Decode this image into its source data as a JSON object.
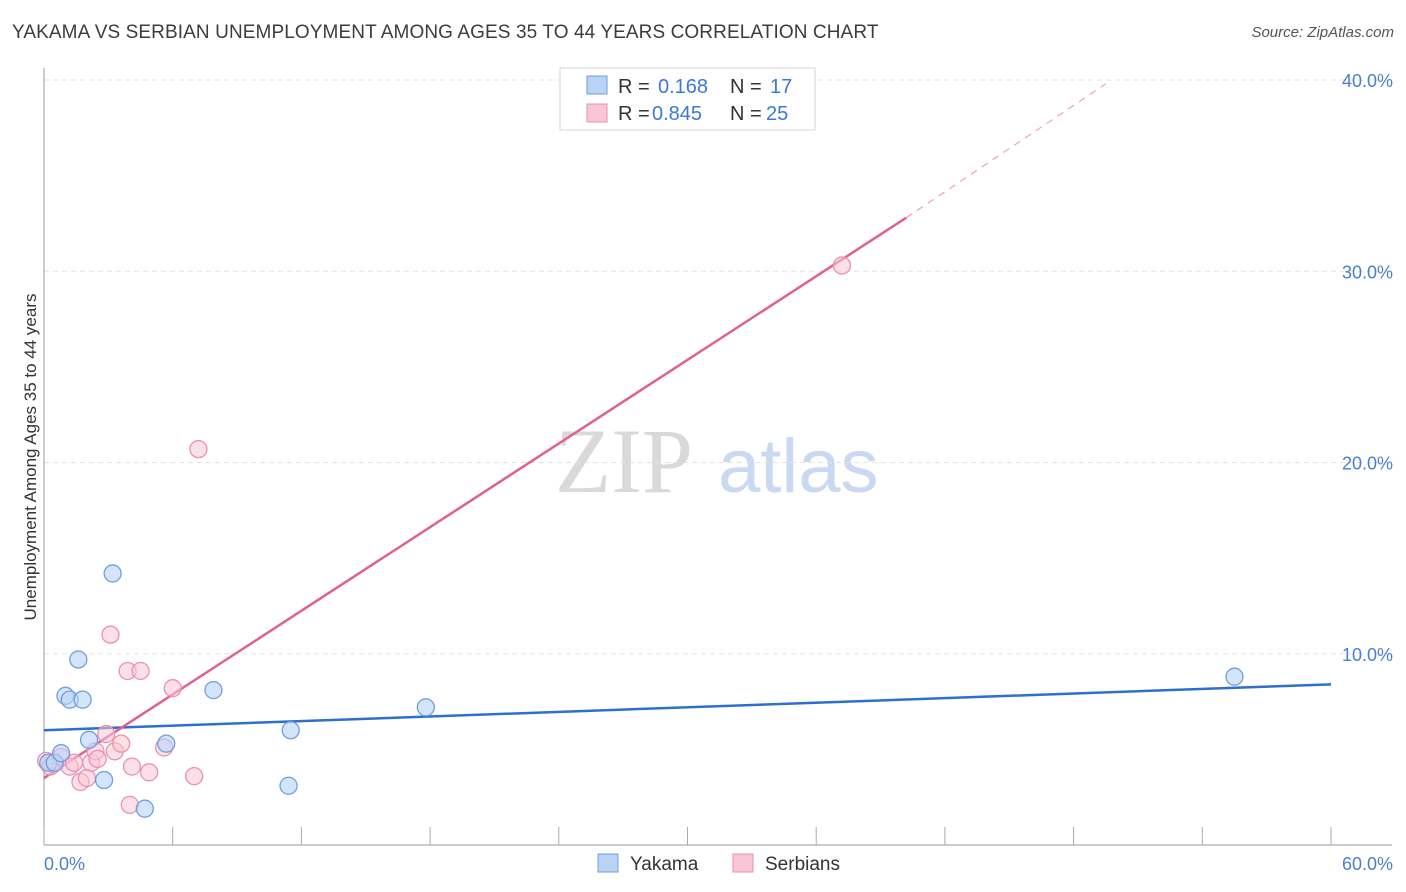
{
  "header": {
    "title": "YAKAMA VS SERBIAN UNEMPLOYMENT AMONG AGES 35 TO 44 YEARS CORRELATION CHART",
    "source": "Source: ZipAtlas.com"
  },
  "watermark": {
    "zip": "ZIP",
    "atlas": "atlas"
  },
  "colors": {
    "yakama_fill": "#b9d3f5",
    "yakama_stroke": "#6f9ee0",
    "yakama_line": "#2d6fcf",
    "serbian_fill": "#f8c6d6",
    "serbian_stroke": "#ec90ae",
    "serbian_line": "#e2608f",
    "tick_label": "#4a7fd0",
    "grid": "#e3e3e3"
  },
  "legend": {
    "rows": [
      {
        "r_label": "R =",
        "r_value": "0.168",
        "n_label": "N =",
        "n_value": "17"
      },
      {
        "r_label": "R =",
        "r_value": "0.845",
        "n_label": "N =",
        "n_value": "25"
      }
    ]
  },
  "chart_data": {
    "type": "scatter",
    "title": "YAKAMA VS SERBIAN UNEMPLOYMENT AMONG AGES 35 TO 44 YEARS CORRELATION CHART",
    "xlabel": "",
    "ylabel": "Unemployment Among Ages 35 to 44 years",
    "xlim": [
      0,
      60
    ],
    "ylim": [
      0,
      40
    ],
    "x_tick_labels": [
      "0.0%",
      "60.0%"
    ],
    "y_ticks": [
      10,
      20,
      30,
      40
    ],
    "y_tick_labels": [
      "10.0%",
      "20.0%",
      "30.0%",
      "40.0%"
    ],
    "grid": true,
    "legend_position": "top-center",
    "series": [
      {
        "name": "Yakama",
        "R": 0.168,
        "N": 17,
        "points": [
          [
            0.2,
            4.3
          ],
          [
            0.5,
            4.3
          ],
          [
            0.8,
            4.8
          ],
          [
            1.0,
            7.8
          ],
          [
            1.2,
            7.6
          ],
          [
            1.6,
            9.7
          ],
          [
            1.8,
            7.6
          ],
          [
            2.1,
            5.5
          ],
          [
            2.8,
            3.4
          ],
          [
            3.2,
            14.2
          ],
          [
            4.7,
            1.9
          ],
          [
            5.7,
            5.3
          ],
          [
            7.9,
            8.1
          ],
          [
            11.5,
            6.0
          ],
          [
            11.4,
            3.1
          ],
          [
            17.8,
            7.2
          ],
          [
            55.5,
            8.8
          ]
        ],
        "trend": {
          "x": [
            0,
            60
          ],
          "y": [
            6.0,
            8.4
          ]
        }
      },
      {
        "name": "Serbians",
        "R": 0.845,
        "N": 25,
        "points": [
          [
            0.1,
            4.4
          ],
          [
            0.3,
            4.1
          ],
          [
            0.5,
            4.3
          ],
          [
            0.8,
            4.6
          ],
          [
            1.2,
            4.1
          ],
          [
            1.4,
            4.3
          ],
          [
            1.7,
            3.3
          ],
          [
            2.0,
            3.5
          ],
          [
            2.2,
            4.3
          ],
          [
            2.4,
            4.9
          ],
          [
            2.5,
            4.5
          ],
          [
            2.9,
            5.8
          ],
          [
            3.1,
            11.0
          ],
          [
            3.3,
            4.9
          ],
          [
            3.6,
            5.3
          ],
          [
            3.9,
            9.1
          ],
          [
            4.0,
            2.1
          ],
          [
            4.1,
            4.1
          ],
          [
            4.5,
            9.1
          ],
          [
            4.9,
            3.8
          ],
          [
            5.6,
            5.1
          ],
          [
            6.0,
            8.2
          ],
          [
            7.0,
            3.6
          ],
          [
            7.2,
            20.7
          ],
          [
            37.2,
            30.3
          ]
        ],
        "trend": {
          "x": [
            0,
            40.2
          ],
          "y": [
            3.5,
            32.8
          ]
        },
        "trend_dashed": {
          "x": [
            40.2,
            49.5
          ],
          "y": [
            32.8,
            39.8
          ]
        }
      }
    ]
  },
  "bottom_legend": {
    "items": [
      "Yakama",
      "Serbians"
    ]
  }
}
